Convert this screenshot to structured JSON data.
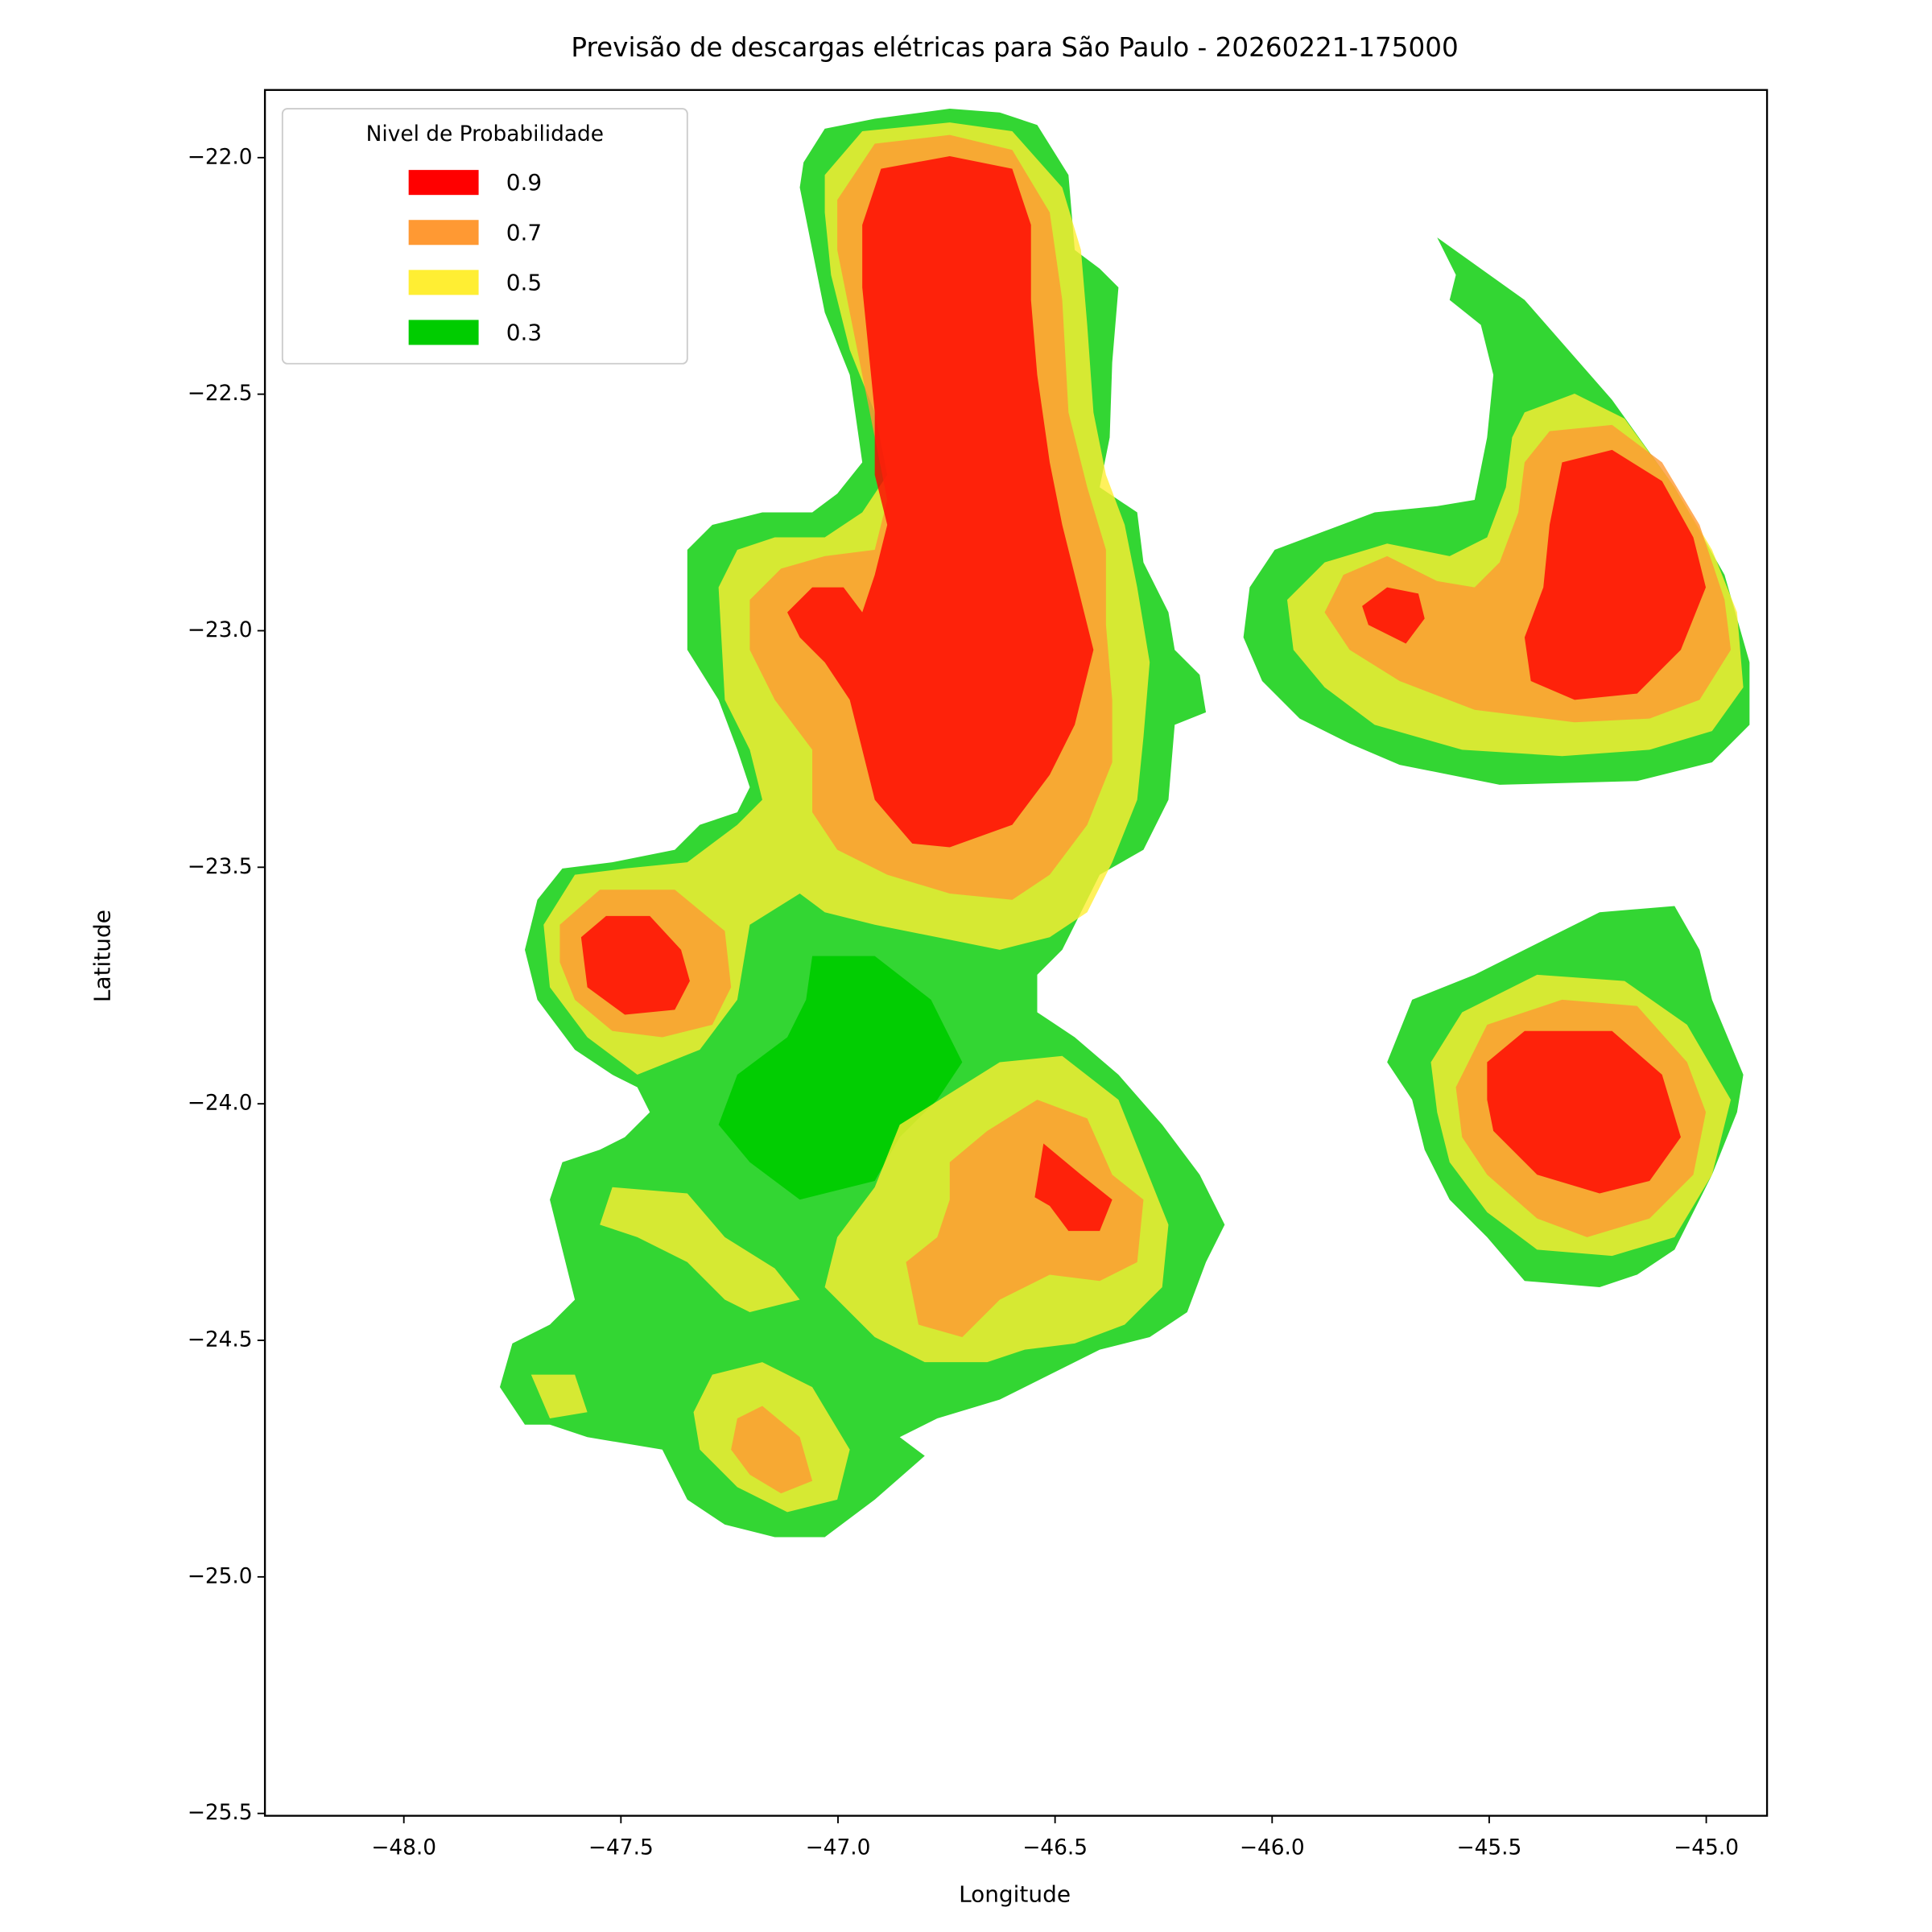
{
  "chart_data": {
    "type": "contourf",
    "title": "Previsão de descargas elétricas para São Paulo - 20260221-175000",
    "xlabel": "Longitude",
    "ylabel": "Latitude",
    "xlim": [
      -48.32,
      -44.86
    ],
    "ylim": [
      -25.505,
      -21.857
    ],
    "xticks": [
      {
        "value": -48,
        "label": "−48.0"
      },
      {
        "value": -47.5,
        "label": "−47.5"
      },
      {
        "value": -47,
        "label": "−47.0"
      },
      {
        "value": -46.5,
        "label": "−46.5"
      },
      {
        "value": -46,
        "label": "−46.0"
      },
      {
        "value": -45.5,
        "label": "−45.5"
      },
      {
        "value": -45,
        "label": "−45.0"
      }
    ],
    "yticks": [
      {
        "value": -22,
        "label": "−22.0"
      },
      {
        "value": -22.5,
        "label": "−22.5"
      },
      {
        "value": -23,
        "label": "−23.0"
      },
      {
        "value": -23.5,
        "label": "−23.5"
      },
      {
        "value": -24,
        "label": "−24.0"
      },
      {
        "value": -24.5,
        "label": "−24.5"
      },
      {
        "value": -25,
        "label": "−25.0"
      },
      {
        "value": -25.5,
        "label": "−25.5"
      }
    ],
    "legend": {
      "title": "Nivel de Probabilidade",
      "position": "upper left"
    },
    "series": [
      {
        "name": "0.9",
        "color": "#ff0000"
      },
      {
        "name": "0.7",
        "color": "#ff9933"
      },
      {
        "name": "0.5",
        "color": "#ffee33"
      },
      {
        "name": "0.3",
        "color": "#00cc00"
      }
    ]
  }
}
